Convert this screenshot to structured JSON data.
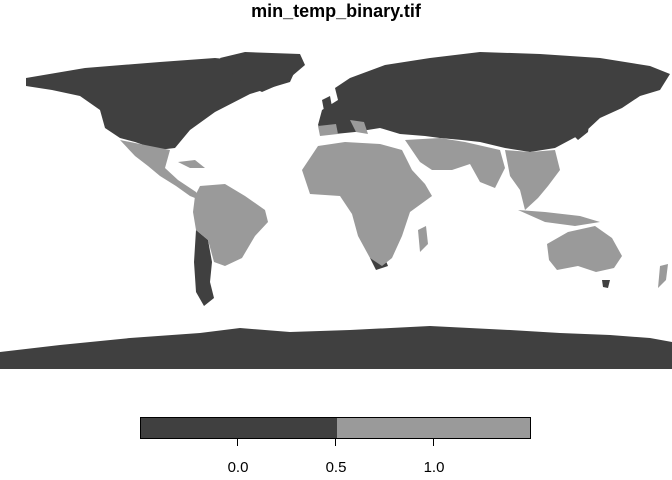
{
  "title": "min_temp_binary.tif",
  "legend": {
    "colors": [
      "#404040",
      "#9a9a9a"
    ],
    "breaks": [
      -0.5,
      0.5,
      1.5
    ],
    "ticks": [
      "0.0",
      "0.5",
      "1.0"
    ]
  },
  "palette": {
    "dark": "#404040",
    "light": "#9a9a9a",
    "background": "#ffffff"
  }
}
